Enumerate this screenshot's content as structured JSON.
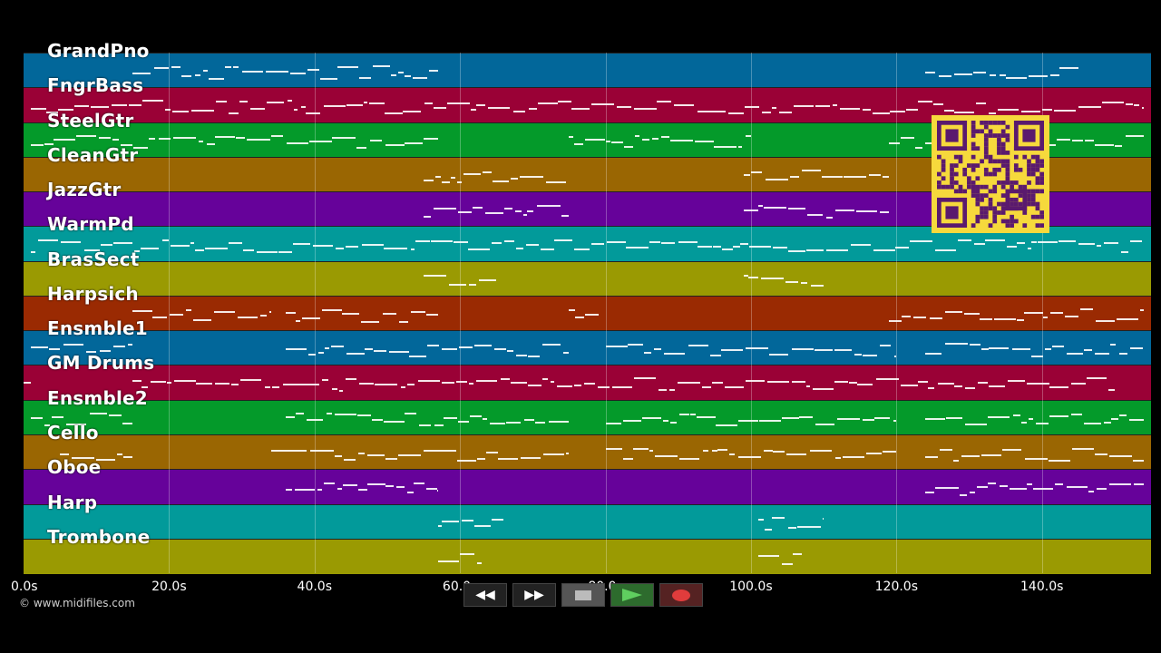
{
  "tracks": [
    {
      "name": "GrandPno",
      "color": "#02679a"
    },
    {
      "name": "FngrBass",
      "color": "#9a0136"
    },
    {
      "name": "SteelGtr",
      "color": "#049a2a"
    },
    {
      "name": "CleanGtr",
      "color": "#9a6602"
    },
    {
      "name": "JazzGtr",
      "color": "#66029a"
    },
    {
      "name": "WarmPd",
      "color": "#029a9a"
    },
    {
      "name": "BrasSect",
      "color": "#9a9a02"
    },
    {
      "name": "Harpsich",
      "color": "#9a2a02"
    },
    {
      "name": "Ensmble1",
      "color": "#02679a"
    },
    {
      "name": "GM Drums",
      "color": "#9a0136"
    },
    {
      "name": "Ensmble2",
      "color": "#049a2a"
    },
    {
      "name": "Cello",
      "color": "#9a6602"
    },
    {
      "name": "Oboe",
      "color": "#66029a"
    },
    {
      "name": "Harp",
      "color": "#029a9a"
    },
    {
      "name": "Trombone",
      "color": "#9a9a02"
    }
  ],
  "timeline": {
    "ticks": [
      "0.0s",
      "20.0s",
      "40.0s",
      "60.0s",
      "80.0s",
      "100.0s",
      "120.0s",
      "140.0s"
    ],
    "tick_seconds": [
      0,
      20,
      40,
      60,
      80,
      100,
      120,
      140
    ],
    "max_seconds": 155
  },
  "note_segments": [
    [
      [
        15,
        57
      ],
      [
        124,
        145
      ]
    ],
    [
      [
        1,
        154
      ]
    ],
    [
      [
        1,
        57
      ],
      [
        75,
        100
      ],
      [
        119,
        154
      ]
    ],
    [
      [
        55,
        75
      ],
      [
        99,
        119
      ]
    ],
    [
      [
        55,
        75
      ],
      [
        99,
        119
      ]
    ],
    [
      [
        1,
        154
      ]
    ],
    [
      [
        55,
        65
      ],
      [
        99,
        110
      ]
    ],
    [
      [
        15,
        34
      ],
      [
        36,
        57
      ],
      [
        75,
        79
      ],
      [
        119,
        154
      ]
    ],
    [
      [
        1,
        15
      ],
      [
        36,
        75
      ],
      [
        80,
        120
      ],
      [
        124,
        154
      ]
    ],
    [
      [
        0,
        1
      ],
      [
        15,
        150
      ]
    ],
    [
      [
        1,
        15
      ],
      [
        36,
        75
      ],
      [
        80,
        120
      ],
      [
        124,
        154
      ]
    ],
    [
      [
        5,
        15
      ],
      [
        34,
        75
      ],
      [
        80,
        120
      ],
      [
        124,
        154
      ]
    ],
    [
      [
        36,
        57
      ],
      [
        124,
        154
      ]
    ],
    [
      [
        57,
        66
      ],
      [
        101,
        110
      ]
    ],
    [
      [
        57,
        63
      ],
      [
        101,
        107
      ]
    ]
  ],
  "copyright": "© www.midifiles.com",
  "controls": {
    "rewind_label": "◀◀",
    "forward_label": "▶▶"
  },
  "colors": {
    "background": "#000000",
    "qr_background": "#f6d93c",
    "qr_foreground": "#5a1a6e"
  }
}
